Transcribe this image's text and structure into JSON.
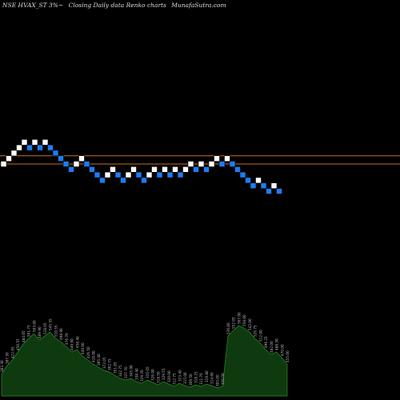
{
  "header": {
    "symbol": "NSE HVAX_ST 3%~",
    "subtitle": "Closing Daily data Renko charts",
    "site": "MunafaSutra.com"
  },
  "chart_data": {
    "type": "renko",
    "title": "NSE HVAX_ST 3%~ Closing Daily data Renko charts",
    "colors": {
      "up": "#ffffff",
      "down": "#1e7cf0",
      "line": "#c87020",
      "volume": "#0f3a0f",
      "volume_stroke": "#2e8b2e"
    },
    "reference_lines": [
      1,
      -0.5
    ],
    "bricks": [
      {
        "d": "up",
        "v": 0
      },
      {
        "d": "up",
        "v": 1
      },
      {
        "d": "up",
        "v": 2
      },
      {
        "d": "up",
        "v": 3
      },
      {
        "d": "up",
        "v": 4
      },
      {
        "d": "down",
        "v": 3
      },
      {
        "d": "up",
        "v": 4
      },
      {
        "d": "down",
        "v": 3
      },
      {
        "d": "up",
        "v": 4
      },
      {
        "d": "down",
        "v": 3
      },
      {
        "d": "down",
        "v": 2
      },
      {
        "d": "down",
        "v": 1
      },
      {
        "d": "down",
        "v": 0
      },
      {
        "d": "down",
        "v": -1
      },
      {
        "d": "up",
        "v": 0
      },
      {
        "d": "up",
        "v": 1
      },
      {
        "d": "down",
        "v": 0
      },
      {
        "d": "down",
        "v": -1
      },
      {
        "d": "down",
        "v": -2
      },
      {
        "d": "down",
        "v": -3
      },
      {
        "d": "up",
        "v": -2
      },
      {
        "d": "up",
        "v": -1
      },
      {
        "d": "down",
        "v": -2
      },
      {
        "d": "down",
        "v": -3
      },
      {
        "d": "up",
        "v": -2
      },
      {
        "d": "up",
        "v": -1
      },
      {
        "d": "down",
        "v": -2
      },
      {
        "d": "down",
        "v": -3
      },
      {
        "d": "up",
        "v": -2
      },
      {
        "d": "up",
        "v": -1
      },
      {
        "d": "down",
        "v": -2
      },
      {
        "d": "up",
        "v": -1
      },
      {
        "d": "down",
        "v": -2
      },
      {
        "d": "up",
        "v": -1
      },
      {
        "d": "down",
        "v": -2
      },
      {
        "d": "up",
        "v": -1
      },
      {
        "d": "up",
        "v": 0
      },
      {
        "d": "down",
        "v": -1
      },
      {
        "d": "up",
        "v": 0
      },
      {
        "d": "down",
        "v": -1
      },
      {
        "d": "up",
        "v": 0
      },
      {
        "d": "up",
        "v": 1
      },
      {
        "d": "down",
        "v": 0
      },
      {
        "d": "up",
        "v": 1
      },
      {
        "d": "down",
        "v": 0
      },
      {
        "d": "down",
        "v": -1
      },
      {
        "d": "down",
        "v": -2
      },
      {
        "d": "down",
        "v": -3
      },
      {
        "d": "down",
        "v": -4
      },
      {
        "d": "up",
        "v": -3
      },
      {
        "d": "down",
        "v": -4
      },
      {
        "d": "down",
        "v": -5
      },
      {
        "d": "up",
        "v": -4
      },
      {
        "d": "down",
        "v": -5
      }
    ],
    "volumes": [
      {
        "v": 0.28,
        "label": "383.30"
      },
      {
        "v": 0.38,
        "label": "387.50"
      },
      {
        "v": 0.45,
        "label": "422.65"
      },
      {
        "v": 0.55,
        "label": "450.55"
      },
      {
        "v": 0.65,
        "label": "484.05"
      },
      {
        "v": 0.72,
        "label": "501.75"
      },
      {
        "v": 0.78,
        "label": "503.00"
      },
      {
        "v": 0.7,
        "label": "489.90"
      },
      {
        "v": 0.75,
        "label": "528.05"
      },
      {
        "v": 0.8,
        "label": "545.35"
      },
      {
        "v": 0.72,
        "label": "510.55"
      },
      {
        "v": 0.68,
        "label": "498.90"
      },
      {
        "v": 0.62,
        "label": "476.70"
      },
      {
        "v": 0.55,
        "label": "449.90"
      },
      {
        "v": 0.58,
        "label": "458.40"
      },
      {
        "v": 0.5,
        "label": "440.00"
      },
      {
        "v": 0.45,
        "label": "426.50"
      },
      {
        "v": 0.4,
        "label": "410.00"
      },
      {
        "v": 0.36,
        "label": "395.40"
      },
      {
        "v": 0.32,
        "label": "372.05"
      },
      {
        "v": 0.3,
        "label": "362.75"
      },
      {
        "v": 0.26,
        "label": "351.85"
      },
      {
        "v": 0.22,
        "label": "342.75"
      },
      {
        "v": 0.2,
        "label": "337.70"
      },
      {
        "v": 0.22,
        "label": "345.90"
      },
      {
        "v": 0.18,
        "label": "338.40"
      },
      {
        "v": 0.16,
        "label": "329.70"
      },
      {
        "v": 0.2,
        "label": "335.05"
      },
      {
        "v": 0.17,
        "label": "326.00"
      },
      {
        "v": 0.14,
        "label": "318.50"
      },
      {
        "v": 0.18,
        "label": "329.55"
      },
      {
        "v": 0.15,
        "label": "320.00"
      },
      {
        "v": 0.12,
        "label": "312.75"
      },
      {
        "v": 0.16,
        "label": "323.40"
      },
      {
        "v": 0.13,
        "label": "315.00"
      },
      {
        "v": 0.11,
        "label": "309.50"
      },
      {
        "v": 0.14,
        "label": "318.25"
      },
      {
        "v": 0.12,
        "label": "311.70"
      },
      {
        "v": 0.15,
        "label": "319.80"
      },
      {
        "v": 0.13,
        "label": "314.60"
      },
      {
        "v": 0.1,
        "label": "305.00"
      },
      {
        "v": 0.12,
        "label": "310.00"
      },
      {
        "v": 0.75,
        "label": "536.80"
      },
      {
        "v": 0.82,
        "label": "552.05"
      },
      {
        "v": 0.88,
        "label": "567.00"
      },
      {
        "v": 0.85,
        "label": "558.00"
      },
      {
        "v": 0.8,
        "label": "542.00"
      },
      {
        "v": 0.72,
        "label": "526.75"
      },
      {
        "v": 0.66,
        "label": "512.00"
      },
      {
        "v": 0.58,
        "label": "496.25"
      },
      {
        "v": 0.52,
        "label": "482.00"
      },
      {
        "v": 0.55,
        "label": "488.30"
      },
      {
        "v": 0.48,
        "label": "470.00"
      },
      {
        "v": 0.4,
        "label": "455.00"
      }
    ]
  }
}
